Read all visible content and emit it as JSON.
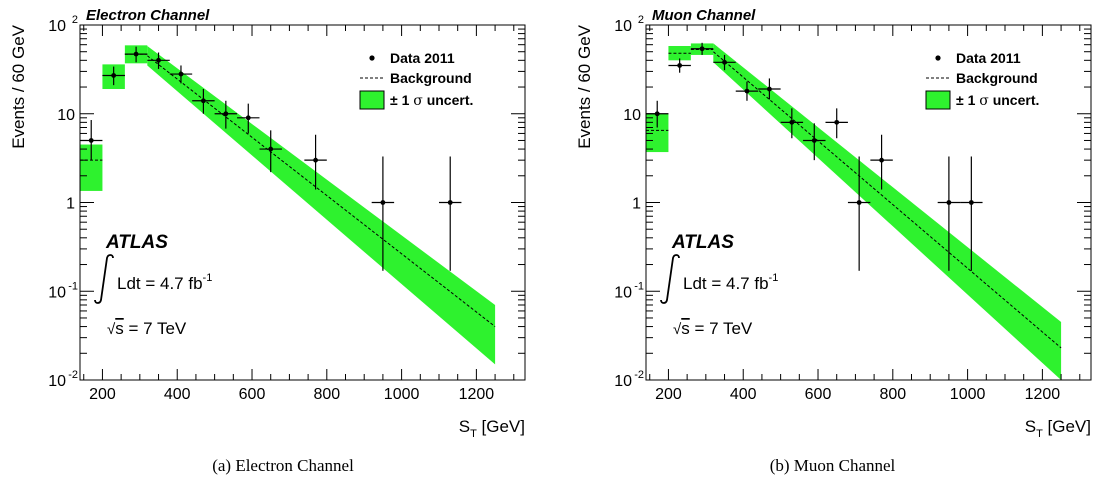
{
  "chart_data": [
    {
      "type": "scatter",
      "panel_label": "(a)",
      "caption": "Electron Channel",
      "channel_title": "Electron Channel",
      "ylabel": "Events / 60 GeV",
      "xlabel_main": "S",
      "xlabel_sub": "T",
      "xlabel_unit": " [GeV]",
      "xlim": [
        140,
        1330
      ],
      "ylim": [
        0.01,
        100
      ],
      "yscale": "log",
      "xticks": [
        200,
        400,
        600,
        800,
        1000,
        1200
      ],
      "yticks": [
        {
          "value": 0.01,
          "base": "10",
          "exp": "-2"
        },
        {
          "value": 0.1,
          "base": "10",
          "exp": "-1"
        },
        {
          "value": 1,
          "base": "1",
          "exp": ""
        },
        {
          "value": 10,
          "base": "10",
          "exp": ""
        },
        {
          "value": 100,
          "base": "10",
          "exp": "2"
        }
      ],
      "legend": {
        "data": "Data 2011",
        "background": "Background",
        "unc_pre": "± 1",
        "unc_sigma": "σ",
        "unc_post": " uncert."
      },
      "atlas": {
        "label": "ATLAS",
        "lumi_pre": "Ldt = 4.7 fb",
        "lumi_exp": "-1",
        "energy_sqrt": "√",
        "energy": "s = 7 TeV"
      },
      "data": [
        {
          "x": 170,
          "y": 5,
          "lo": 3,
          "hi": 8.5
        },
        {
          "x": 230,
          "y": 27,
          "lo": 21,
          "hi": 34
        },
        {
          "x": 290,
          "y": 47,
          "lo": 38,
          "hi": 57
        },
        {
          "x": 350,
          "y": 40,
          "lo": 32,
          "hi": 49
        },
        {
          "x": 410,
          "y": 28,
          "lo": 22,
          "hi": 35
        },
        {
          "x": 470,
          "y": 14,
          "lo": 10,
          "hi": 19
        },
        {
          "x": 530,
          "y": 10,
          "lo": 6.8,
          "hi": 14
        },
        {
          "x": 590,
          "y": 9,
          "lo": 6,
          "hi": 13
        },
        {
          "x": 650,
          "y": 4,
          "lo": 2.2,
          "hi": 6.5
        },
        {
          "x": 770,
          "y": 3,
          "lo": 1.4,
          "hi": 5.8
        },
        {
          "x": 950,
          "y": 1,
          "lo": 0.17,
          "hi": 3.3
        },
        {
          "x": 1130,
          "y": 1,
          "lo": 0.17,
          "hi": 3.3
        }
      ],
      "band_steps": [
        {
          "x0": 140,
          "x1": 200,
          "lo": 1.35,
          "hi": 4.5,
          "c": 3
        },
        {
          "x0": 200,
          "x1": 260,
          "lo": 19,
          "hi": 36,
          "c": 27
        },
        {
          "x0": 260,
          "x1": 320,
          "lo": 37,
          "hi": 59,
          "c": 47
        }
      ],
      "band_taper": {
        "x0": 320,
        "x1": 1250,
        "c0": 45,
        "c1": 0.04,
        "lo0": 35,
        "hi0": 58,
        "lo1": 0.015,
        "hi1": 0.07
      }
    },
    {
      "type": "scatter",
      "panel_label": "(b)",
      "caption": "Muon Channel",
      "channel_title": "Muon Channel",
      "ylabel": "Events / 60 GeV",
      "xlabel_main": "S",
      "xlabel_sub": "T",
      "xlabel_unit": " [GeV]",
      "xlim": [
        140,
        1330
      ],
      "ylim": [
        0.01,
        100
      ],
      "yscale": "log",
      "xticks": [
        200,
        400,
        600,
        800,
        1000,
        1200
      ],
      "yticks": [
        {
          "value": 0.01,
          "base": "10",
          "exp": "-2"
        },
        {
          "value": 0.1,
          "base": "10",
          "exp": "-1"
        },
        {
          "value": 1,
          "base": "1",
          "exp": ""
        },
        {
          "value": 10,
          "base": "10",
          "exp": ""
        },
        {
          "value": 100,
          "base": "10",
          "exp": "2"
        }
      ],
      "legend": {
        "data": "Data 2011",
        "background": "Background",
        "unc_pre": "± 1",
        "unc_sigma": "σ",
        "unc_post": " uncert."
      },
      "atlas": {
        "label": "ATLAS",
        "lumi_pre": "Ldt = 4.7 fb",
        "lumi_exp": "-1",
        "energy_sqrt": "√",
        "energy": "s = 7 TeV"
      },
      "data": [
        {
          "x": 170,
          "y": 10,
          "lo": 7,
          "hi": 14
        },
        {
          "x": 230,
          "y": 35,
          "lo": 29,
          "hi": 42
        },
        {
          "x": 290,
          "y": 54,
          "lo": 46,
          "hi": 63
        },
        {
          "x": 350,
          "y": 38,
          "lo": 31,
          "hi": 46
        },
        {
          "x": 410,
          "y": 18,
          "lo": 14,
          "hi": 23
        },
        {
          "x": 470,
          "y": 19,
          "lo": 14.5,
          "hi": 25
        },
        {
          "x": 530,
          "y": 8,
          "lo": 5.3,
          "hi": 11.5
        },
        {
          "x": 590,
          "y": 5,
          "lo": 3,
          "hi": 7.8
        },
        {
          "x": 650,
          "y": 8,
          "lo": 5.3,
          "hi": 11.5
        },
        {
          "x": 710,
          "y": 1,
          "lo": 0.17,
          "hi": 3.3
        },
        {
          "x": 770,
          "y": 3,
          "lo": 1.4,
          "hi": 5.8
        },
        {
          "x": 950,
          "y": 1,
          "lo": 0.17,
          "hi": 3.3
        },
        {
          "x": 1010,
          "y": 1,
          "lo": 0.17,
          "hi": 3.3
        }
      ],
      "band_steps": [
        {
          "x0": 140,
          "x1": 200,
          "lo": 3.7,
          "hi": 10,
          "c": 6.5
        },
        {
          "x0": 200,
          "x1": 260,
          "lo": 40,
          "hi": 58,
          "c": 48
        },
        {
          "x0": 260,
          "x1": 320,
          "lo": 46,
          "hi": 62,
          "c": 53
        }
      ],
      "band_taper": {
        "x0": 320,
        "x1": 1250,
        "c0": 50,
        "c1": 0.023,
        "lo0": 38,
        "hi0": 62,
        "lo1": 0.01,
        "hi1": 0.045
      }
    }
  ],
  "colors": {
    "band": "#2ef22e",
    "line": "#000000"
  }
}
